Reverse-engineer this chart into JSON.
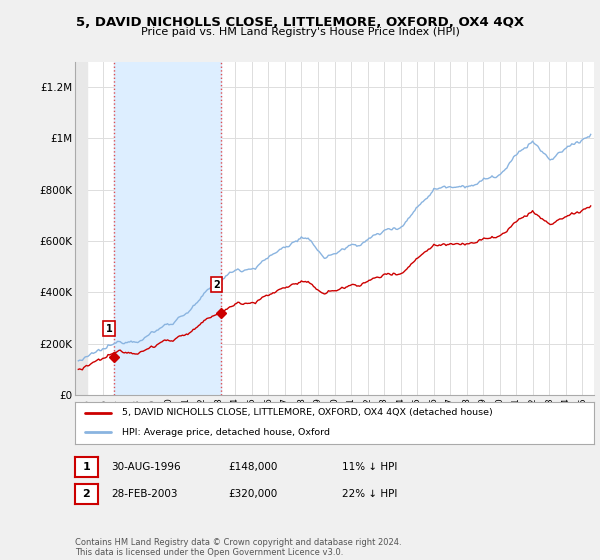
{
  "title": "5, DAVID NICHOLLS CLOSE, LITTLEMORE, OXFORD, OX4 4QX",
  "subtitle": "Price paid vs. HM Land Registry's House Price Index (HPI)",
  "ylabel_ticks": [
    "£0",
    "£200K",
    "£400K",
    "£600K",
    "£800K",
    "£1M",
    "£1.2M"
  ],
  "ytick_values": [
    0,
    200000,
    400000,
    600000,
    800000,
    1000000,
    1200000
  ],
  "ylim": [
    0,
    1300000
  ],
  "xlim_start": 1994.3,
  "xlim_end": 2025.7,
  "hpi_color": "#8ab4e0",
  "price_color": "#CC0000",
  "shade_color": "#ddeeff",
  "sale1_date": 1996.66,
  "sale1_price": 148000,
  "sale2_date": 2003.16,
  "sale2_price": 320000,
  "legend_house": "5, DAVID NICHOLLS CLOSE, LITTLEMORE, OXFORD, OX4 4QX (detached house)",
  "legend_hpi": "HPI: Average price, detached house, Oxford",
  "annotation1_label": "1",
  "annotation1_date": "30-AUG-1996",
  "annotation1_price": "£148,000",
  "annotation1_hpi": "11% ↓ HPI",
  "annotation2_label": "2",
  "annotation2_date": "28-FEB-2003",
  "annotation2_price": "£320,000",
  "annotation2_hpi": "22% ↓ HPI",
  "footer": "Contains HM Land Registry data © Crown copyright and database right 2024.\nThis data is licensed under the Open Government Licence v3.0.",
  "background_color": "#f0f0f0",
  "plot_background": "#ffffff",
  "grid_color": "#dddddd"
}
